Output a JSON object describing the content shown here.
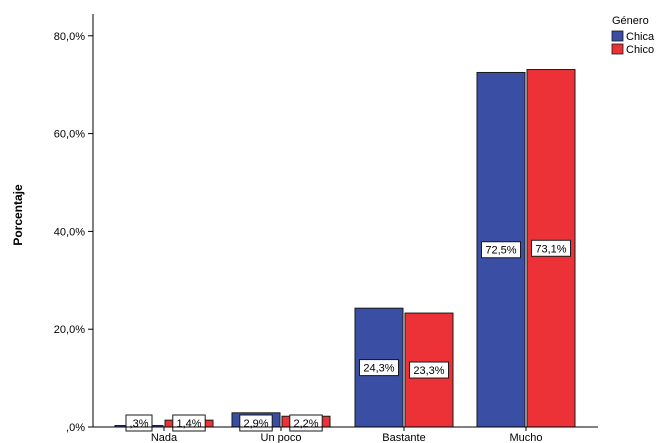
{
  "chart_data": {
    "type": "bar",
    "title": "",
    "xlabel": "",
    "ylabel": "Porcentaje",
    "ylim": [
      0,
      82
    ],
    "yticks": [
      0,
      20,
      40,
      60,
      80
    ],
    "ytick_labels": [
      ",0%",
      "20,0%",
      "40,0%",
      "60,0%",
      "80,0%"
    ],
    "categories": [
      "Nada",
      "Un poco",
      "Bastante",
      "Mucho"
    ],
    "series": [
      {
        "name": "Chica",
        "color": "#3a4ea3",
        "values": [
          0.3,
          2.9,
          24.3,
          72.5
        ],
        "labels": [
          ",3%",
          "2,9%",
          "24,3%",
          "72,5%"
        ]
      },
      {
        "name": "Chico",
        "color": "#ec3237",
        "values": [
          1.4,
          2.2,
          23.3,
          73.1
        ],
        "labels": [
          "1,4%",
          "2,2%",
          "23,3%",
          "73,1%"
        ]
      }
    ],
    "legend": {
      "title": "Género",
      "placement": "top-right"
    },
    "grid": false
  }
}
